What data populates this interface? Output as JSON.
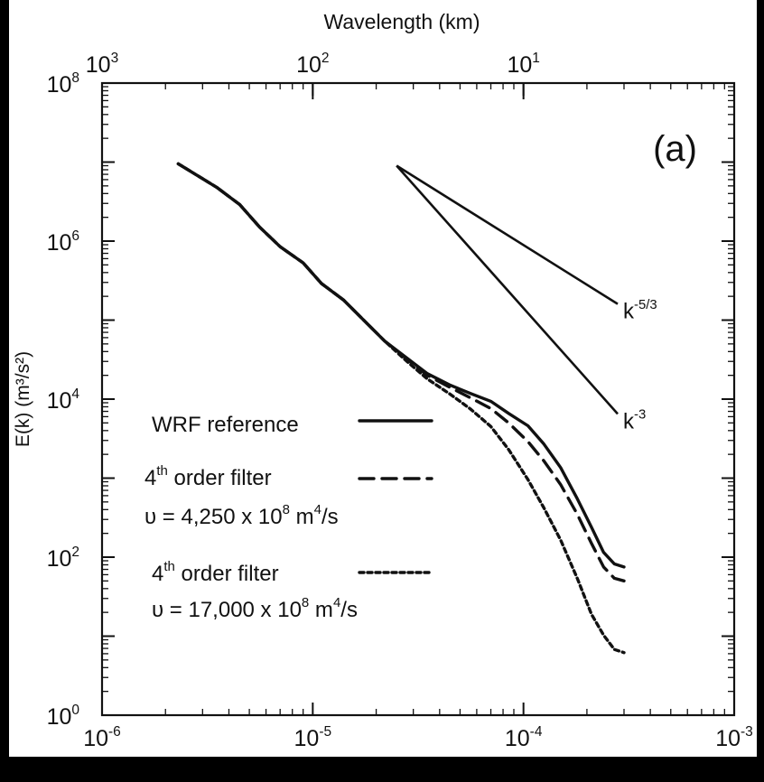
{
  "chart_data": {
    "type": "line",
    "x_scale": "log",
    "y_scale": "log",
    "xlim": [
      1e-06,
      0.001
    ],
    "ylim": [
      1,
      100000000.0
    ],
    "top_axis_label": "Wavelength  (km)",
    "ylabel": "E(k) (m³/s²)",
    "xlabel": "",
    "panel_label": "(a)",
    "x_ticks": [
      {
        "value": 1e-06,
        "base": "10",
        "exp": "-6"
      },
      {
        "value": 1e-05,
        "base": "10",
        "exp": "-5"
      },
      {
        "value": 0.0001,
        "base": "10",
        "exp": "-4"
      },
      {
        "value": 0.001,
        "base": "10",
        "exp": "-3"
      }
    ],
    "y_ticks": [
      {
        "value": 1,
        "base": "10",
        "exp": "0"
      },
      {
        "value": 100,
        "base": "10",
        "exp": "2"
      },
      {
        "value": 10000,
        "base": "10",
        "exp": "4"
      },
      {
        "value": 1000000,
        "base": "10",
        "exp": "6"
      },
      {
        "value": 100000000,
        "base": "10",
        "exp": "8"
      }
    ],
    "top_ticks": [
      {
        "wavelength_km": 1000,
        "base": "10",
        "exp": "3"
      },
      {
        "wavelength_km": 100,
        "base": "10",
        "exp": "2"
      },
      {
        "wavelength_km": 10,
        "base": "10",
        "exp": "1"
      }
    ],
    "series": [
      {
        "name": "WRF reference",
        "style": "solid",
        "x": [
          2.3e-06,
          3.5e-06,
          4.5e-06,
          5.6e-06,
          7e-06,
          9e-06,
          1.1e-05,
          1.4e-05,
          1.8e-05,
          2.2e-05,
          2.8e-05,
          3.5e-05,
          4.5e-05,
          5.6e-05,
          7e-05,
          8.5e-05,
          0.000105,
          0.000125,
          0.00015,
          0.00018,
          0.00021,
          0.00024,
          0.00027,
          0.0003
        ],
        "y": [
          9500000.0,
          4800000.0,
          2900000.0,
          1500000.0,
          850000.0,
          530000.0,
          290000.0,
          180000.0,
          92000.0,
          54000.0,
          33000.0,
          21000.0,
          15000.0,
          11800.0,
          9400.0,
          6600.0,
          4600.0,
          2700.0,
          1360.0,
          550,
          240,
          115,
          82,
          75
        ]
      },
      {
        "name": "4th order filter",
        "parameter": "υ = 4,250 x 10⁸ m⁴/s",
        "style": "dashed",
        "x": [
          2.3e-06,
          3.5e-06,
          4.5e-06,
          5.6e-06,
          7e-06,
          9e-06,
          1.1e-05,
          1.4e-05,
          1.8e-05,
          2.2e-05,
          2.8e-05,
          3.5e-05,
          4.5e-05,
          5.6e-05,
          7e-05,
          8.5e-05,
          0.000105,
          0.000125,
          0.00015,
          0.00018,
          0.00021,
          0.00024,
          0.00027,
          0.0003
        ],
        "y": [
          9500000.0,
          4800000.0,
          2900000.0,
          1500000.0,
          850000.0,
          530000.0,
          290000.0,
          180000.0,
          92000.0,
          54000.0,
          32000.0,
          20000.0,
          14000.0,
          10400.0,
          7600.0,
          5000.0,
          2900.0,
          1650.0,
          830,
          350,
          150,
          75,
          54,
          50
        ]
      },
      {
        "name": "4th order filter",
        "parameter": "υ = 17,000 x 10⁸ m⁴/s",
        "style": "dotted",
        "x": [
          2.3e-06,
          3.5e-06,
          4.5e-06,
          5.6e-06,
          7e-06,
          9e-06,
          1.1e-05,
          1.4e-05,
          1.8e-05,
          2.2e-05,
          2.8e-05,
          3.5e-05,
          4.5e-05,
          5.6e-05,
          7e-05,
          8.5e-05,
          0.000105,
          0.000125,
          0.00015,
          0.00018,
          0.00021,
          0.00024,
          0.00027,
          0.0003
        ],
        "y": [
          9500000.0,
          4800000.0,
          2900000.0,
          1500000.0,
          850000.0,
          530000.0,
          290000.0,
          180000.0,
          92000.0,
          54000.0,
          30000.0,
          18000.0,
          11500.0,
          7500.0,
          4500.0,
          2300.0,
          960,
          420,
          165,
          54,
          19,
          10.3,
          6.8,
          6.2
        ]
      }
    ],
    "reference_slopes": [
      {
        "label_base": "k",
        "label_exp": "-5/3",
        "x": [
          2.5e-05,
          0.00028
        ],
        "y": [
          9000000.0,
          160000.0
        ]
      },
      {
        "label_base": "k",
        "label_exp": "-3",
        "x": [
          2.5e-05,
          0.00028
        ],
        "y": [
          9000000.0,
          6500.0
        ]
      }
    ],
    "legend": {
      "placement": "center-left",
      "entries": [
        {
          "text": "WRF reference",
          "style": "solid"
        },
        {
          "text_base": "4",
          "text_sup": "th",
          "text_rest": " order filter",
          "parameter": "υ = 4,250 x 10",
          "parameter_sup": "8",
          "parameter_unit": " m",
          "parameter_unit_sup": "4",
          "parameter_tail": "/s",
          "style": "dashed"
        },
        {
          "text_base": "4",
          "text_sup": "th",
          "text_rest": " order filter",
          "parameter": "υ = 17,000 x 10",
          "parameter_sup": "8",
          "parameter_unit": " m",
          "parameter_unit_sup": "4",
          "parameter_tail": "/s",
          "style": "dotted"
        }
      ]
    }
  }
}
